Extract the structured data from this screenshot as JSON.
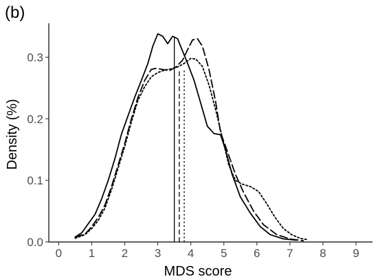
{
  "chart_data": {
    "type": "line",
    "panel_label": "(b)",
    "xlabel": "MDS score",
    "ylabel": "Density (%)",
    "xlim": [
      -0.3,
      9.5
    ],
    "ylim": [
      0,
      0.355
    ],
    "xticks": [
      0,
      1,
      2,
      3,
      4,
      5,
      6,
      7,
      8,
      9
    ],
    "yticks": [
      0.0,
      0.1,
      0.2,
      0.3
    ],
    "ytick_labels": [
      "0.0",
      "0.1",
      "0.2",
      "0.3"
    ],
    "grid": false,
    "legend": "none",
    "series": [
      {
        "line_style": "solid",
        "color": "#000000",
        "points": [
          [
            0.5,
            0.008
          ],
          [
            0.7,
            0.015
          ],
          [
            0.9,
            0.03
          ],
          [
            1.1,
            0.045
          ],
          [
            1.3,
            0.07
          ],
          [
            1.5,
            0.1
          ],
          [
            1.7,
            0.135
          ],
          [
            1.9,
            0.175
          ],
          [
            2.1,
            0.205
          ],
          [
            2.3,
            0.235
          ],
          [
            2.5,
            0.262
          ],
          [
            2.7,
            0.29
          ],
          [
            2.85,
            0.318
          ],
          [
            3.0,
            0.338
          ],
          [
            3.15,
            0.334
          ],
          [
            3.3,
            0.322
          ],
          [
            3.45,
            0.334
          ],
          [
            3.6,
            0.33
          ],
          [
            3.75,
            0.31
          ],
          [
            3.9,
            0.29
          ],
          [
            4.1,
            0.262
          ],
          [
            4.3,
            0.225
          ],
          [
            4.5,
            0.188
          ],
          [
            4.7,
            0.176
          ],
          [
            4.9,
            0.174
          ],
          [
            5.05,
            0.15
          ],
          [
            5.25,
            0.11
          ],
          [
            5.5,
            0.073
          ],
          [
            5.8,
            0.047
          ],
          [
            6.1,
            0.025
          ],
          [
            6.4,
            0.012
          ],
          [
            6.8,
            0.005
          ],
          [
            7.2,
            0.003
          ]
        ]
      },
      {
        "line_style": "longdash",
        "color": "#000000",
        "points": [
          [
            0.5,
            0.008
          ],
          [
            0.8,
            0.013
          ],
          [
            1.0,
            0.025
          ],
          [
            1.2,
            0.04
          ],
          [
            1.4,
            0.06
          ],
          [
            1.6,
            0.09
          ],
          [
            1.8,
            0.125
          ],
          [
            2.0,
            0.16
          ],
          [
            2.2,
            0.2
          ],
          [
            2.4,
            0.235
          ],
          [
            2.6,
            0.262
          ],
          [
            2.8,
            0.28
          ],
          [
            2.95,
            0.282
          ],
          [
            3.15,
            0.28
          ],
          [
            3.35,
            0.278
          ],
          [
            3.55,
            0.284
          ],
          [
            3.75,
            0.295
          ],
          [
            3.9,
            0.312
          ],
          [
            4.05,
            0.328
          ],
          [
            4.2,
            0.33
          ],
          [
            4.35,
            0.318
          ],
          [
            4.55,
            0.28
          ],
          [
            4.75,
            0.228
          ],
          [
            4.9,
            0.178
          ],
          [
            5.1,
            0.148
          ],
          [
            5.35,
            0.11
          ],
          [
            5.6,
            0.08
          ],
          [
            5.9,
            0.05
          ],
          [
            6.2,
            0.028
          ],
          [
            6.6,
            0.012
          ],
          [
            7.0,
            0.005
          ],
          [
            7.4,
            0.002
          ]
        ]
      },
      {
        "line_style": "dotted",
        "color": "#000000",
        "points": [
          [
            0.5,
            0.006
          ],
          [
            0.8,
            0.012
          ],
          [
            1.0,
            0.022
          ],
          [
            1.2,
            0.035
          ],
          [
            1.4,
            0.055
          ],
          [
            1.6,
            0.085
          ],
          [
            1.8,
            0.12
          ],
          [
            2.0,
            0.155
          ],
          [
            2.2,
            0.195
          ],
          [
            2.4,
            0.23
          ],
          [
            2.6,
            0.252
          ],
          [
            2.8,
            0.268
          ],
          [
            3.0,
            0.275
          ],
          [
            3.2,
            0.279
          ],
          [
            3.4,
            0.281
          ],
          [
            3.6,
            0.284
          ],
          [
            3.8,
            0.29
          ],
          [
            4.0,
            0.298
          ],
          [
            4.15,
            0.297
          ],
          [
            4.35,
            0.285
          ],
          [
            4.55,
            0.255
          ],
          [
            4.75,
            0.215
          ],
          [
            4.95,
            0.17
          ],
          [
            5.15,
            0.125
          ],
          [
            5.35,
            0.1
          ],
          [
            5.55,
            0.094
          ],
          [
            5.8,
            0.09
          ],
          [
            6.05,
            0.082
          ],
          [
            6.3,
            0.062
          ],
          [
            6.55,
            0.04
          ],
          [
            6.8,
            0.022
          ],
          [
            7.05,
            0.012
          ],
          [
            7.3,
            0.006
          ],
          [
            7.5,
            0.004
          ]
        ]
      }
    ],
    "vertical_lines": [
      {
        "x": 3.5,
        "line_style": "solid",
        "top": 0.333
      },
      {
        "x": 3.65,
        "line_style": "longdash",
        "top": 0.28
      },
      {
        "x": 3.8,
        "line_style": "dotted",
        "top": 0.28
      }
    ]
  }
}
